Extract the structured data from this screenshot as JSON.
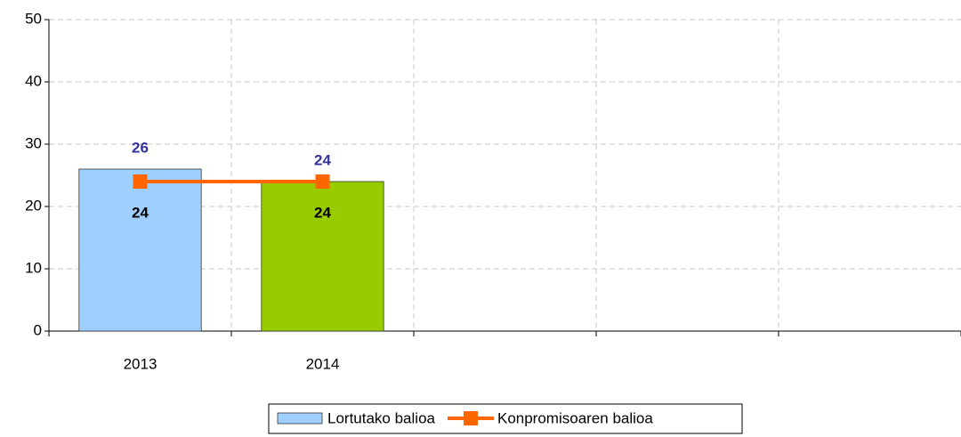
{
  "chart_data": {
    "type": "bar_line",
    "categories": [
      "2013",
      "2014",
      null,
      null,
      null
    ],
    "series": [
      {
        "name": "Lortutako balioa",
        "type": "bar",
        "color": "#9fcfff",
        "colors": [
          "#9fcfff",
          "#99cc00"
        ],
        "values": [
          26,
          24,
          null,
          null,
          null
        ],
        "label_color": "#333399"
      },
      {
        "name": "Konpromisoaren balioa",
        "type": "line",
        "color": "#ff6600",
        "values": [
          24,
          24,
          null,
          null,
          null
        ],
        "label_color": "#000000"
      }
    ],
    "ylim": [
      0,
      50
    ],
    "yticks": [
      0,
      10,
      20,
      30,
      40,
      50
    ],
    "grid": true,
    "legend": "bottom"
  }
}
